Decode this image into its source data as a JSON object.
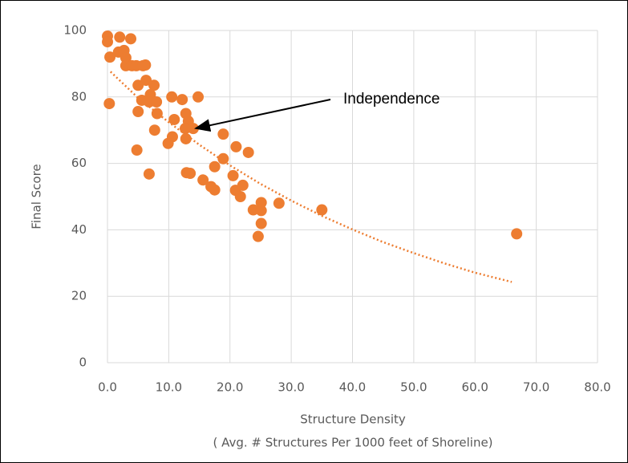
{
  "chart_data": {
    "type": "scatter",
    "x_label": "Structure Density",
    "x_label_note": "( Avg. # Structures Per 1000 feet of Shoreline)",
    "y_label": "Final Score",
    "annotation": "Independence",
    "xlim": [
      0,
      80
    ],
    "xticks": [
      {
        "value": 0,
        "label": "0.0"
      },
      {
        "value": 10,
        "label": "10.0"
      },
      {
        "value": 20,
        "label": "20.0"
      },
      {
        "value": 30,
        "label": "30.0"
      },
      {
        "value": 40,
        "label": "40.0"
      },
      {
        "value": 50,
        "label": "50.0"
      },
      {
        "value": 60,
        "label": "60.0"
      },
      {
        "value": 70,
        "label": "70.0"
      },
      {
        "value": 80,
        "label": "80.0"
      }
    ],
    "ylim": [
      0,
      100
    ],
    "yticks": [
      0,
      20,
      40,
      60,
      80,
      100
    ],
    "grid": true,
    "color": "#ed7d31",
    "x": [
      0.0,
      0.0,
      0.4,
      0.3,
      2.0,
      3.8,
      1.8,
      2.7,
      3.0,
      3.0,
      4.0,
      4.7,
      5.8,
      6.2,
      5.0,
      6.3,
      7.6,
      7.0,
      5.6,
      6.8,
      8.0,
      8.1,
      5.0,
      10.5,
      12.2,
      14.8,
      10.9,
      12.8,
      13.2,
      12.7,
      14.0,
      12.8,
      10.6,
      9.9,
      7.7,
      4.8,
      6.8,
      12.9,
      13.5,
      15.6,
      16.9,
      17.5,
      17.5,
      18.9,
      18.9,
      21.0,
      23.0,
      20.5,
      20.9,
      21.7,
      22.1,
      23.8,
      25.1,
      25.1,
      25.1,
      24.6,
      28.0,
      35.0,
      66.8
    ],
    "values": [
      98.3,
      96.6,
      92.0,
      78.0,
      98.0,
      97.5,
      93.5,
      94.0,
      91.8,
      89.4,
      89.4,
      89.4,
      89.4,
      89.6,
      83.5,
      85.0,
      83.5,
      80.7,
      79.0,
      78.5,
      78.5,
      75.0,
      75.6,
      80.0,
      79.2,
      80.0,
      73.2,
      75.0,
      72.7,
      70.5,
      70.5,
      67.4,
      68.0,
      66.0,
      70.0,
      64.0,
      56.8,
      57.2,
      57.0,
      55.0,
      53.0,
      52.0,
      59.0,
      61.4,
      68.8,
      65.0,
      63.3,
      56.3,
      51.9,
      50.0,
      53.4,
      46.0,
      48.2,
      45.8,
      41.9,
      38.0,
      48.0,
      46.0,
      38.8
    ],
    "trendline": {
      "color": "#ed7d31",
      "x": [
        0.5,
        5,
        10,
        15,
        20,
        25,
        30,
        35,
        40,
        45,
        50,
        55,
        60,
        66
      ],
      "values": [
        87.6,
        79.7,
        72.4,
        65.6,
        59.4,
        53.8,
        48.8,
        44.2,
        40.1,
        36.3,
        33.0,
        29.9,
        27.1,
        24.3
      ]
    }
  }
}
